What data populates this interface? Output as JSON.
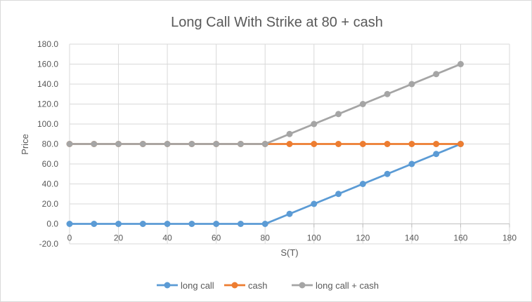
{
  "chart_data": {
    "type": "line",
    "title": "Long Call With Strike at 80 + cash",
    "xlabel": "S(T)",
    "ylabel": "Price",
    "xlim": [
      0,
      180
    ],
    "ylim": [
      -20,
      180
    ],
    "x_ticks": [
      "0",
      "20",
      "40",
      "60",
      "80",
      "100",
      "120",
      "140",
      "160",
      "180"
    ],
    "y_ticks": [
      "-20.0",
      "0.0",
      "20.0",
      "40.0",
      "60.0",
      "80.0",
      "100.0",
      "120.0",
      "140.0",
      "160.0",
      "180.0"
    ],
    "grid": true,
    "legend_position": "bottom",
    "x": [
      0,
      10,
      20,
      30,
      40,
      50,
      60,
      70,
      80,
      90,
      100,
      110,
      120,
      130,
      140,
      150,
      160
    ],
    "series": [
      {
        "name": "long call",
        "color": "#5b9bd5",
        "values": [
          0,
          0,
          0,
          0,
          0,
          0,
          0,
          0,
          0,
          10,
          20,
          30,
          40,
          50,
          60,
          70,
          80
        ]
      },
      {
        "name": "cash",
        "color": "#ed7d31",
        "values": [
          80,
          80,
          80,
          80,
          80,
          80,
          80,
          80,
          80,
          80,
          80,
          80,
          80,
          80,
          80,
          80,
          80
        ]
      },
      {
        "name": "long call + cash",
        "color": "#a5a5a5",
        "values": [
          80,
          80,
          80,
          80,
          80,
          80,
          80,
          80,
          80,
          90,
          100,
          110,
          120,
          130,
          140,
          150,
          160
        ]
      }
    ]
  }
}
